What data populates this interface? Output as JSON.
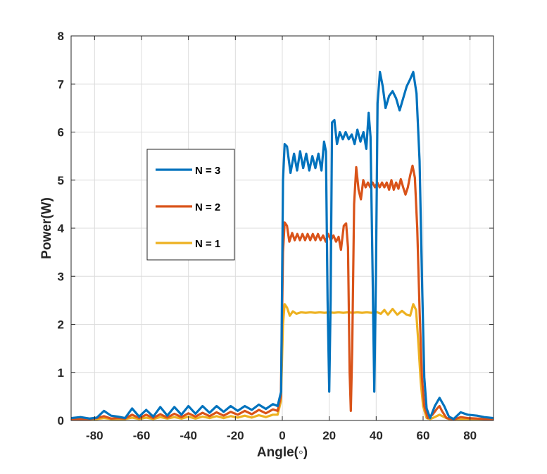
{
  "chart_data": {
    "type": "line",
    "title": "",
    "xlabel": "Angle(◦)",
    "ylabel": "Power(W)",
    "xlim": [
      -90,
      90
    ],
    "ylim": [
      0,
      8
    ],
    "xticks": [
      -80,
      -60,
      -40,
      -20,
      0,
      20,
      40,
      60,
      80
    ],
    "xtick_labels": [
      "-80",
      "-60",
      "-40",
      "-20",
      "0",
      "20",
      "40",
      "60",
      "80"
    ],
    "yticks": [
      0,
      1,
      2,
      3,
      4,
      5,
      6,
      7,
      8
    ],
    "ytick_labels": [
      "0",
      "1",
      "2",
      "3",
      "4",
      "5",
      "6",
      "7",
      "8"
    ],
    "grid": true,
    "legend_position": "left-middle",
    "series": [
      {
        "name": "N = 3",
        "color": "#0072BD",
        "points": [
          [
            -90,
            0.05
          ],
          [
            -86,
            0.07
          ],
          [
            -82,
            0.04
          ],
          [
            -79,
            0.06
          ],
          [
            -76,
            0.2
          ],
          [
            -73,
            0.1
          ],
          [
            -70,
            0.08
          ],
          [
            -67,
            0.05
          ],
          [
            -64,
            0.25
          ],
          [
            -61,
            0.08
          ],
          [
            -58,
            0.22
          ],
          [
            -55,
            0.08
          ],
          [
            -52,
            0.28
          ],
          [
            -49,
            0.1
          ],
          [
            -46,
            0.28
          ],
          [
            -43,
            0.12
          ],
          [
            -40,
            0.3
          ],
          [
            -37,
            0.14
          ],
          [
            -34,
            0.3
          ],
          [
            -31,
            0.16
          ],
          [
            -28,
            0.3
          ],
          [
            -25,
            0.18
          ],
          [
            -22,
            0.3
          ],
          [
            -19,
            0.2
          ],
          [
            -16,
            0.3
          ],
          [
            -13,
            0.22
          ],
          [
            -10,
            0.33
          ],
          [
            -7,
            0.24
          ],
          [
            -4,
            0.34
          ],
          [
            -2,
            0.3
          ],
          [
            -0.5,
            0.6
          ],
          [
            0.3,
            5.0
          ],
          [
            1.0,
            5.75
          ],
          [
            2.0,
            5.7
          ],
          [
            3.5,
            5.15
          ],
          [
            5.0,
            5.55
          ],
          [
            6.3,
            5.2
          ],
          [
            7.6,
            5.6
          ],
          [
            8.9,
            5.25
          ],
          [
            10.2,
            5.55
          ],
          [
            11.5,
            5.2
          ],
          [
            12.8,
            5.5
          ],
          [
            14.1,
            5.25
          ],
          [
            15.4,
            5.55
          ],
          [
            16.7,
            5.2
          ],
          [
            17.8,
            5.8
          ],
          [
            18.6,
            5.6
          ],
          [
            19.3,
            2.5
          ],
          [
            20.0,
            0.6
          ],
          [
            20.6,
            2.5
          ],
          [
            21.2,
            6.2
          ],
          [
            22.2,
            6.25
          ],
          [
            23.3,
            5.75
          ],
          [
            24.5,
            6.0
          ],
          [
            25.8,
            5.85
          ],
          [
            27.0,
            6.0
          ],
          [
            28.3,
            5.85
          ],
          [
            29.6,
            5.95
          ],
          [
            30.8,
            5.75
          ],
          [
            32.0,
            6.05
          ],
          [
            33.3,
            5.8
          ],
          [
            34.6,
            6.0
          ],
          [
            35.8,
            5.65
          ],
          [
            36.8,
            6.4
          ],
          [
            37.6,
            5.9
          ],
          [
            38.5,
            3.0
          ],
          [
            39.2,
            0.6
          ],
          [
            39.9,
            3.0
          ],
          [
            40.6,
            6.6
          ],
          [
            41.6,
            7.25
          ],
          [
            42.8,
            6.95
          ],
          [
            44.0,
            6.5
          ],
          [
            45.5,
            6.75
          ],
          [
            47.0,
            6.85
          ],
          [
            48.5,
            6.7
          ],
          [
            50.0,
            6.45
          ],
          [
            51.5,
            6.7
          ],
          [
            53.0,
            6.95
          ],
          [
            54.5,
            7.1
          ],
          [
            55.8,
            7.25
          ],
          [
            57.2,
            6.8
          ],
          [
            58.5,
            5.4
          ],
          [
            59.5,
            3.0
          ],
          [
            60.5,
            0.9
          ],
          [
            61.5,
            0.25
          ],
          [
            63,
            0.05
          ],
          [
            65,
            0.3
          ],
          [
            67,
            0.47
          ],
          [
            69,
            0.3
          ],
          [
            71,
            0.08
          ],
          [
            73,
            0.03
          ],
          [
            76,
            0.17
          ],
          [
            79,
            0.12
          ],
          [
            83,
            0.1
          ],
          [
            86,
            0.07
          ],
          [
            90,
            0.05
          ]
        ]
      },
      {
        "name": "N = 2",
        "color": "#D95319",
        "points": [
          [
            -90,
            0.03
          ],
          [
            -86,
            0.03
          ],
          [
            -82,
            0.03
          ],
          [
            -79,
            0.05
          ],
          [
            -76,
            0.09
          ],
          [
            -73,
            0.04
          ],
          [
            -70,
            0.05
          ],
          [
            -67,
            0.04
          ],
          [
            -64,
            0.12
          ],
          [
            -61,
            0.05
          ],
          [
            -58,
            0.12
          ],
          [
            -55,
            0.05
          ],
          [
            -52,
            0.13
          ],
          [
            -49,
            0.06
          ],
          [
            -46,
            0.14
          ],
          [
            -43,
            0.07
          ],
          [
            -40,
            0.15
          ],
          [
            -37,
            0.08
          ],
          [
            -34,
            0.16
          ],
          [
            -31,
            0.09
          ],
          [
            -28,
            0.17
          ],
          [
            -25,
            0.1
          ],
          [
            -22,
            0.18
          ],
          [
            -19,
            0.12
          ],
          [
            -16,
            0.2
          ],
          [
            -13,
            0.13
          ],
          [
            -10,
            0.22
          ],
          [
            -7,
            0.15
          ],
          [
            -4,
            0.23
          ],
          [
            -2,
            0.2
          ],
          [
            -0.6,
            0.5
          ],
          [
            0.3,
            3.5
          ],
          [
            1.0,
            4.12
          ],
          [
            2.0,
            4.05
          ],
          [
            3.0,
            3.72
          ],
          [
            4.2,
            3.9
          ],
          [
            5.3,
            3.75
          ],
          [
            6.4,
            3.88
          ],
          [
            7.5,
            3.75
          ],
          [
            8.6,
            3.88
          ],
          [
            9.7,
            3.75
          ],
          [
            10.8,
            3.88
          ],
          [
            11.9,
            3.75
          ],
          [
            13.0,
            3.88
          ],
          [
            14.1,
            3.75
          ],
          [
            15.2,
            3.88
          ],
          [
            16.3,
            3.75
          ],
          [
            17.4,
            3.85
          ],
          [
            18.5,
            3.72
          ],
          [
            19.6,
            3.88
          ],
          [
            20.7,
            3.75
          ],
          [
            21.8,
            3.85
          ],
          [
            22.9,
            3.72
          ],
          [
            24.0,
            3.82
          ],
          [
            25.0,
            3.55
          ],
          [
            26.2,
            4.05
          ],
          [
            27.2,
            4.1
          ],
          [
            28.0,
            3.6
          ],
          [
            28.7,
            1.0
          ],
          [
            29.2,
            0.2
          ],
          [
            29.8,
            1.5
          ],
          [
            30.6,
            4.5
          ],
          [
            31.5,
            5.27
          ],
          [
            32.5,
            4.8
          ],
          [
            33.5,
            4.6
          ],
          [
            34.5,
            5.0
          ],
          [
            35.5,
            4.85
          ],
          [
            36.5,
            4.95
          ],
          [
            37.5,
            4.85
          ],
          [
            38.5,
            4.95
          ],
          [
            39.5,
            4.85
          ],
          [
            40.5,
            4.95
          ],
          [
            41.5,
            4.85
          ],
          [
            42.5,
            4.95
          ],
          [
            43.5,
            4.85
          ],
          [
            44.5,
            4.95
          ],
          [
            45.5,
            4.8
          ],
          [
            46.5,
            5.0
          ],
          [
            47.5,
            4.8
          ],
          [
            48.5,
            4.95
          ],
          [
            49.5,
            4.82
          ],
          [
            50.5,
            5.02
          ],
          [
            51.5,
            4.85
          ],
          [
            52.5,
            4.7
          ],
          [
            53.5,
            4.85
          ],
          [
            54.5,
            5.1
          ],
          [
            55.5,
            5.3
          ],
          [
            56.5,
            5.05
          ],
          [
            57.5,
            4.0
          ],
          [
            58.5,
            2.3
          ],
          [
            59.5,
            0.9
          ],
          [
            60.5,
            0.3
          ],
          [
            62,
            0.05
          ],
          [
            64,
            0.12
          ],
          [
            66,
            0.25
          ],
          [
            67,
            0.3
          ],
          [
            68,
            0.2
          ],
          [
            70,
            0.05
          ],
          [
            73,
            0.02
          ],
          [
            76,
            0.07
          ],
          [
            79,
            0.05
          ],
          [
            83,
            0.04
          ],
          [
            86,
            0.03
          ],
          [
            90,
            0.03
          ]
        ]
      },
      {
        "name": "N = 1",
        "color": "#EDB120",
        "points": [
          [
            -90,
            0.02
          ],
          [
            -86,
            0.02
          ],
          [
            -82,
            0.02
          ],
          [
            -79,
            0.03
          ],
          [
            -76,
            0.05
          ],
          [
            -73,
            0.03
          ],
          [
            -70,
            0.03
          ],
          [
            -67,
            0.03
          ],
          [
            -64,
            0.06
          ],
          [
            -61,
            0.03
          ],
          [
            -58,
            0.06
          ],
          [
            -55,
            0.03
          ],
          [
            -52,
            0.07
          ],
          [
            -49,
            0.04
          ],
          [
            -46,
            0.07
          ],
          [
            -43,
            0.04
          ],
          [
            -40,
            0.08
          ],
          [
            -37,
            0.04
          ],
          [
            -34,
            0.08
          ],
          [
            -31,
            0.05
          ],
          [
            -28,
            0.09
          ],
          [
            -25,
            0.05
          ],
          [
            -22,
            0.09
          ],
          [
            -19,
            0.06
          ],
          [
            -16,
            0.1
          ],
          [
            -13,
            0.06
          ],
          [
            -10,
            0.11
          ],
          [
            -7,
            0.07
          ],
          [
            -4,
            0.12
          ],
          [
            -2,
            0.12
          ],
          [
            -0.6,
            0.4
          ],
          [
            0.3,
            2.0
          ],
          [
            1.0,
            2.42
          ],
          [
            2.0,
            2.35
          ],
          [
            3.2,
            2.18
          ],
          [
            4.5,
            2.27
          ],
          [
            6.0,
            2.22
          ],
          [
            8.0,
            2.25
          ],
          [
            10.0,
            2.24
          ],
          [
            12.0,
            2.25
          ],
          [
            14.0,
            2.24
          ],
          [
            16.0,
            2.25
          ],
          [
            18.0,
            2.24
          ],
          [
            20.0,
            2.25
          ],
          [
            22.0,
            2.24
          ],
          [
            24.0,
            2.25
          ],
          [
            26.0,
            2.24
          ],
          [
            28.0,
            2.25
          ],
          [
            30.0,
            2.24
          ],
          [
            32.0,
            2.25
          ],
          [
            34.0,
            2.24
          ],
          [
            36.0,
            2.25
          ],
          [
            38.0,
            2.24
          ],
          [
            40.0,
            2.26
          ],
          [
            42.0,
            2.22
          ],
          [
            43.5,
            2.3
          ],
          [
            45.0,
            2.2
          ],
          [
            47.0,
            2.32
          ],
          [
            49.0,
            2.2
          ],
          [
            51.0,
            2.28
          ],
          [
            53.0,
            2.2
          ],
          [
            54.5,
            2.18
          ],
          [
            55.8,
            2.42
          ],
          [
            57.0,
            2.3
          ],
          [
            58.0,
            1.6
          ],
          [
            59.0,
            0.8
          ],
          [
            60.0,
            0.3
          ],
          [
            61.5,
            0.05
          ],
          [
            63,
            0.03
          ],
          [
            65,
            0.07
          ],
          [
            67,
            0.12
          ],
          [
            69,
            0.07
          ],
          [
            71,
            0.03
          ],
          [
            74,
            0.02
          ],
          [
            78,
            0.03
          ],
          [
            82,
            0.02
          ],
          [
            86,
            0.02
          ],
          [
            90,
            0.02
          ]
        ]
      }
    ]
  }
}
